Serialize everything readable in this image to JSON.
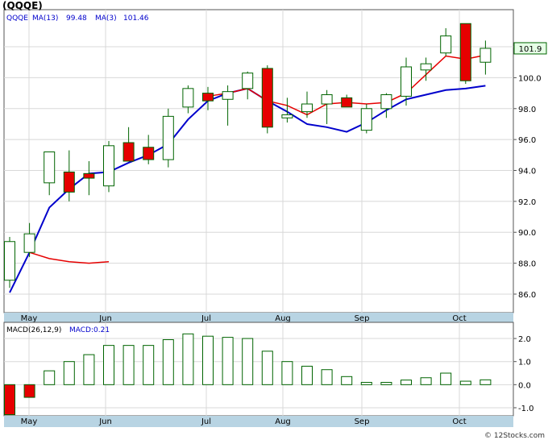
{
  "title": "(QQQE)",
  "watermark": "© 12Stocks.com",
  "chart_data": [
    {
      "type": "candlestick",
      "symbol": "QQQE",
      "legend": {
        "symbol_label": "QQQE",
        "ma13_label": "MA(13)",
        "ma13_value": "99.48",
        "ma3_label": "MA(3)",
        "ma3_value": "101.46",
        "placement": "top-left"
      },
      "last_price_label": "101.9",
      "ylim": [
        84.8,
        104.4
      ],
      "y_ticks": [
        86.0,
        88.0,
        90.0,
        92.0,
        94.0,
        96.0,
        98.0,
        100.0,
        102.0
      ],
      "y_tick_labels": [
        "86.0",
        "88.0",
        "90.0",
        "92.0",
        "94.0",
        "96.0",
        "98.0",
        "100.0",
        "102.0"
      ],
      "month_labels": [
        "May",
        "Jun",
        "Jul",
        "Aug",
        "Sep",
        "Oct"
      ],
      "grid": true,
      "colors": {
        "up": "#ffffff",
        "down": "#e60000",
        "outline": "#006400",
        "ma13": "#0000cc",
        "ma3": "#e60000",
        "grid": "#d8d8d8"
      },
      "candles": [
        {
          "open": 86.9,
          "high": 89.7,
          "low": 86.4,
          "close": 89.4
        },
        {
          "open": 88.7,
          "high": 90.6,
          "low": 88.4,
          "close": 89.9
        },
        {
          "open": 93.2,
          "high": 95.2,
          "low": 92.4,
          "close": 95.2
        },
        {
          "open": 93.9,
          "high": 95.3,
          "low": 92.0,
          "close": 92.6
        },
        {
          "open": 93.8,
          "high": 94.6,
          "low": 92.4,
          "close": 93.5
        },
        {
          "open": 93.0,
          "high": 95.9,
          "low": 92.6,
          "close": 95.6
        },
        {
          "open": 95.8,
          "high": 96.8,
          "low": 94.7,
          "close": 94.6
        },
        {
          "open": 95.5,
          "high": 96.3,
          "low": 94.4,
          "close": 94.7
        },
        {
          "open": 94.7,
          "high": 98.0,
          "low": 94.2,
          "close": 97.5
        },
        {
          "open": 98.1,
          "high": 99.5,
          "low": 97.7,
          "close": 99.3
        },
        {
          "open": 99.0,
          "high": 99.4,
          "low": 97.9,
          "close": 98.5
        },
        {
          "open": 98.6,
          "high": 99.5,
          "low": 96.9,
          "close": 99.1
        },
        {
          "open": 99.3,
          "high": 100.4,
          "low": 98.6,
          "close": 100.3
        },
        {
          "open": 100.6,
          "high": 100.8,
          "low": 96.4,
          "close": 96.8
        },
        {
          "open": 97.4,
          "high": 98.7,
          "low": 97.1,
          "close": 97.6
        },
        {
          "open": 97.8,
          "high": 99.1,
          "low": 97.4,
          "close": 98.3
        },
        {
          "open": 98.3,
          "high": 99.2,
          "low": 97.0,
          "close": 98.9
        },
        {
          "open": 98.7,
          "high": 98.9,
          "low": 98.2,
          "close": 98.1
        },
        {
          "open": 96.6,
          "high": 98.3,
          "low": 96.4,
          "close": 98.0
        },
        {
          "open": 98.0,
          "high": 99.0,
          "low": 97.4,
          "close": 98.9
        },
        {
          "open": 98.8,
          "high": 101.3,
          "low": 98.2,
          "close": 100.7
        },
        {
          "open": 100.5,
          "high": 101.3,
          "low": 99.8,
          "close": 100.9
        },
        {
          "open": 101.6,
          "high": 103.2,
          "low": 101.4,
          "close": 102.7
        },
        {
          "open": 103.5,
          "high": 103.5,
          "low": 99.6,
          "close": 99.8
        },
        {
          "open": 101.0,
          "high": 102.4,
          "low": 100.2,
          "close": 101.9
        }
      ],
      "ma3": [
        null,
        88.7,
        88.3,
        88.1,
        88.0,
        88.1,
        null,
        null,
        null,
        null,
        98.8,
        99.0,
        99.3,
        98.5,
        98.2,
        97.6,
        98.3,
        98.4,
        98.3,
        98.4,
        99.0,
        100.2,
        101.4,
        101.2,
        101.46
      ],
      "ma13": [
        86.1,
        88.7,
        91.6,
        92.8,
        93.8,
        93.9,
        94.5,
        95.0,
        95.7,
        97.3,
        98.5,
        99.0,
        99.3,
        98.5,
        97.8,
        97.0,
        96.8,
        96.5,
        97.1,
        97.9,
        98.6,
        98.9,
        99.2,
        99.3,
        99.48
      ]
    },
    {
      "type": "bar",
      "name": "MACD",
      "legend": {
        "label": "MACD(26,12,9)",
        "value_label": "MACD:0.21",
        "placement": "top-left"
      },
      "ylim": [
        -1.35,
        2.7
      ],
      "y_ticks": [
        -1.0,
        0.0,
        1.0,
        2.0
      ],
      "y_tick_labels": [
        "-1.0",
        "0.0",
        "1.0",
        "2.0"
      ],
      "month_labels": [
        "May",
        "Jun",
        "Jul",
        "Aug",
        "Sep",
        "Oct"
      ],
      "values": [
        -1.3,
        -0.55,
        0.6,
        1.0,
        1.3,
        1.7,
        1.7,
        1.7,
        1.95,
        2.2,
        2.1,
        2.05,
        2.0,
        1.45,
        1.0,
        0.8,
        0.65,
        0.35,
        0.1,
        0.1,
        0.2,
        0.3,
        0.5,
        0.15,
        0.21
      ],
      "colors": {
        "positive": "#ffffff",
        "negative": "#e60000",
        "outline": "#006400"
      }
    }
  ]
}
